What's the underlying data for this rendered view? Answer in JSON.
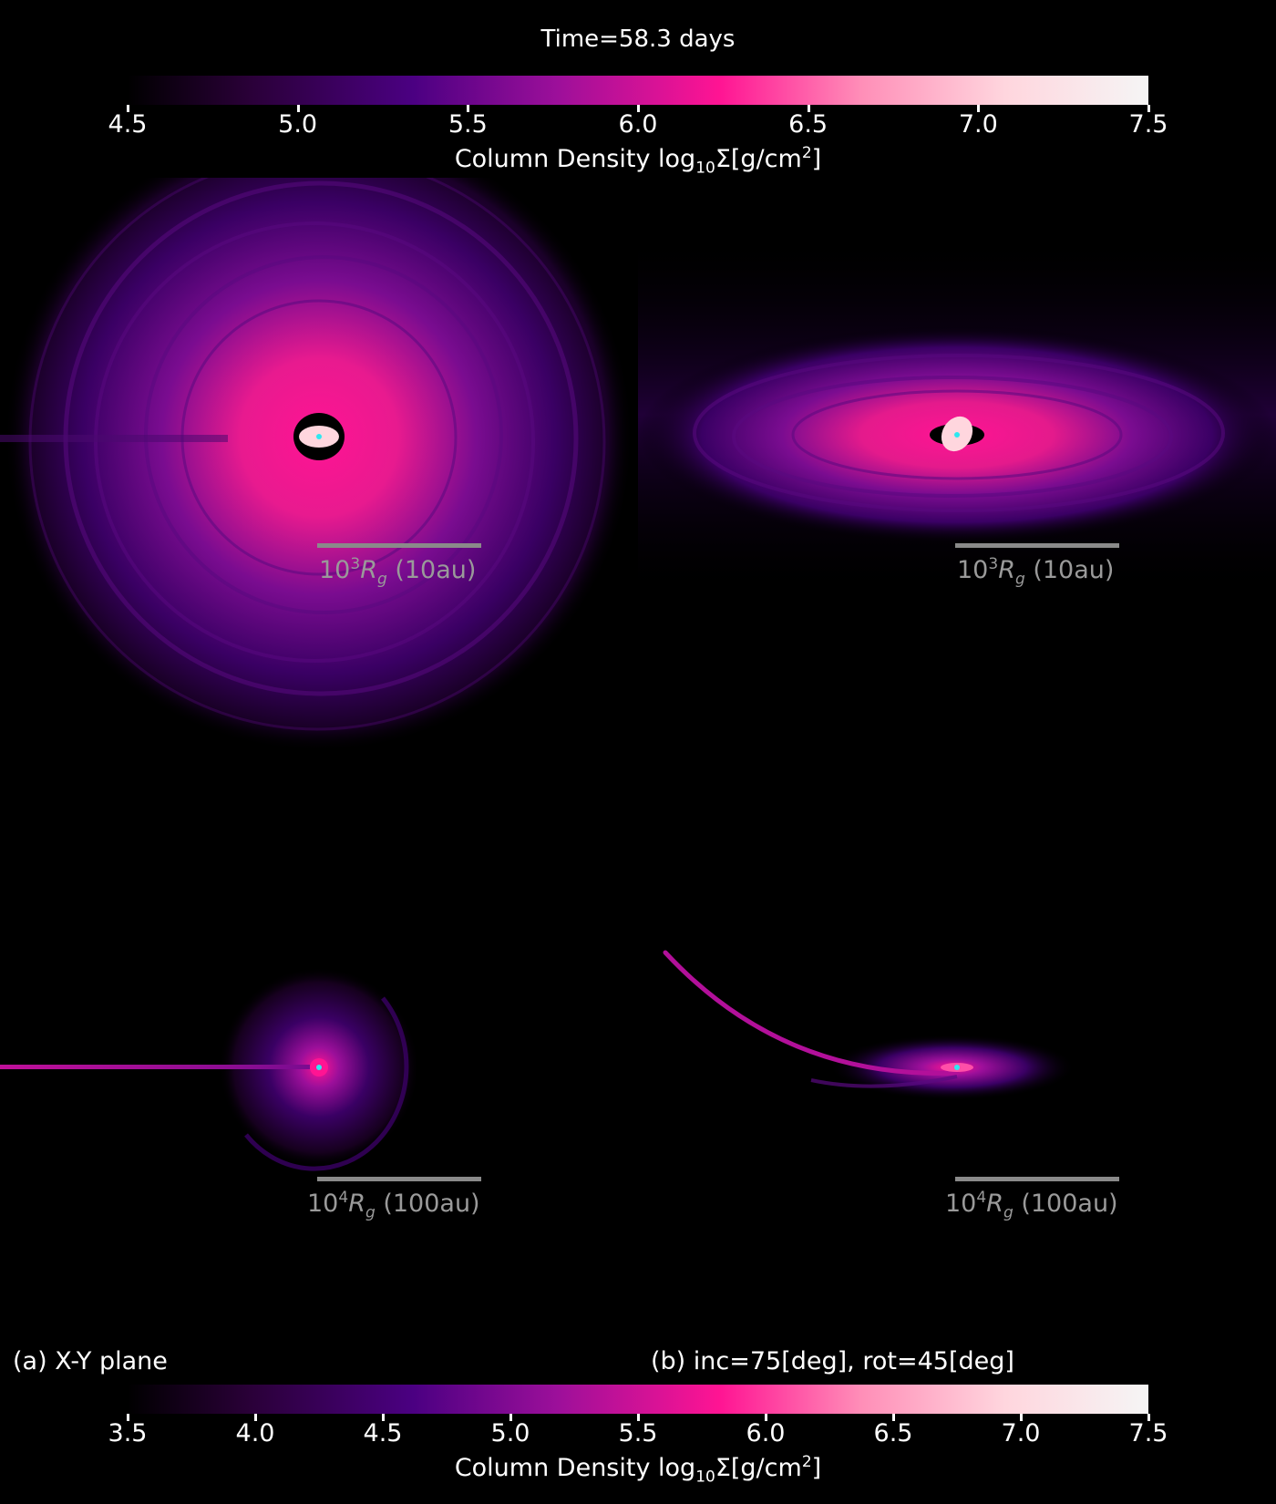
{
  "title": "Time=58.3 days",
  "colorbar_top": {
    "ticks": [
      "4.5",
      "5.0",
      "5.5",
      "6.0",
      "6.5",
      "7.0",
      "7.5"
    ],
    "label_prefix": "Column Density log",
    "label_sub": "10",
    "label_mid": "Σ[g/cm",
    "label_sup": "2",
    "label_suffix": "]",
    "range": [
      4.5,
      7.5
    ]
  },
  "colorbar_bottom": {
    "ticks": [
      "3.5",
      "4.0",
      "4.5",
      "5.0",
      "5.5",
      "6.0",
      "6.5",
      "7.0",
      "7.5"
    ],
    "label_prefix": "Column Density log",
    "label_sub": "10",
    "label_mid": "Σ[g/cm",
    "label_sup": "2",
    "label_suffix": "]",
    "range": [
      3.5,
      7.5
    ]
  },
  "scalebars": {
    "small": {
      "base": "10",
      "exp": "3",
      "sym": "R",
      "symsub": "g",
      "unit": " (10au)"
    },
    "large": {
      "base": "10",
      "exp": "4",
      "sym": "R",
      "symsub": "g",
      "unit": " (100au)"
    }
  },
  "panel_labels": {
    "a": "(a) X-Y plane",
    "b": "(b) inc=75[deg],  rot=45[deg]"
  },
  "colors": {
    "background": "#000000",
    "cmap": [
      "#000000",
      "#2a0038",
      "#4b0082",
      "#9c0f9a",
      "#ff1493",
      "#ff8fb8",
      "#ffd6de",
      "#f5f5f5"
    ],
    "center_marker": "#2ee8f0",
    "scalebar": "#8a8a8a"
  }
}
